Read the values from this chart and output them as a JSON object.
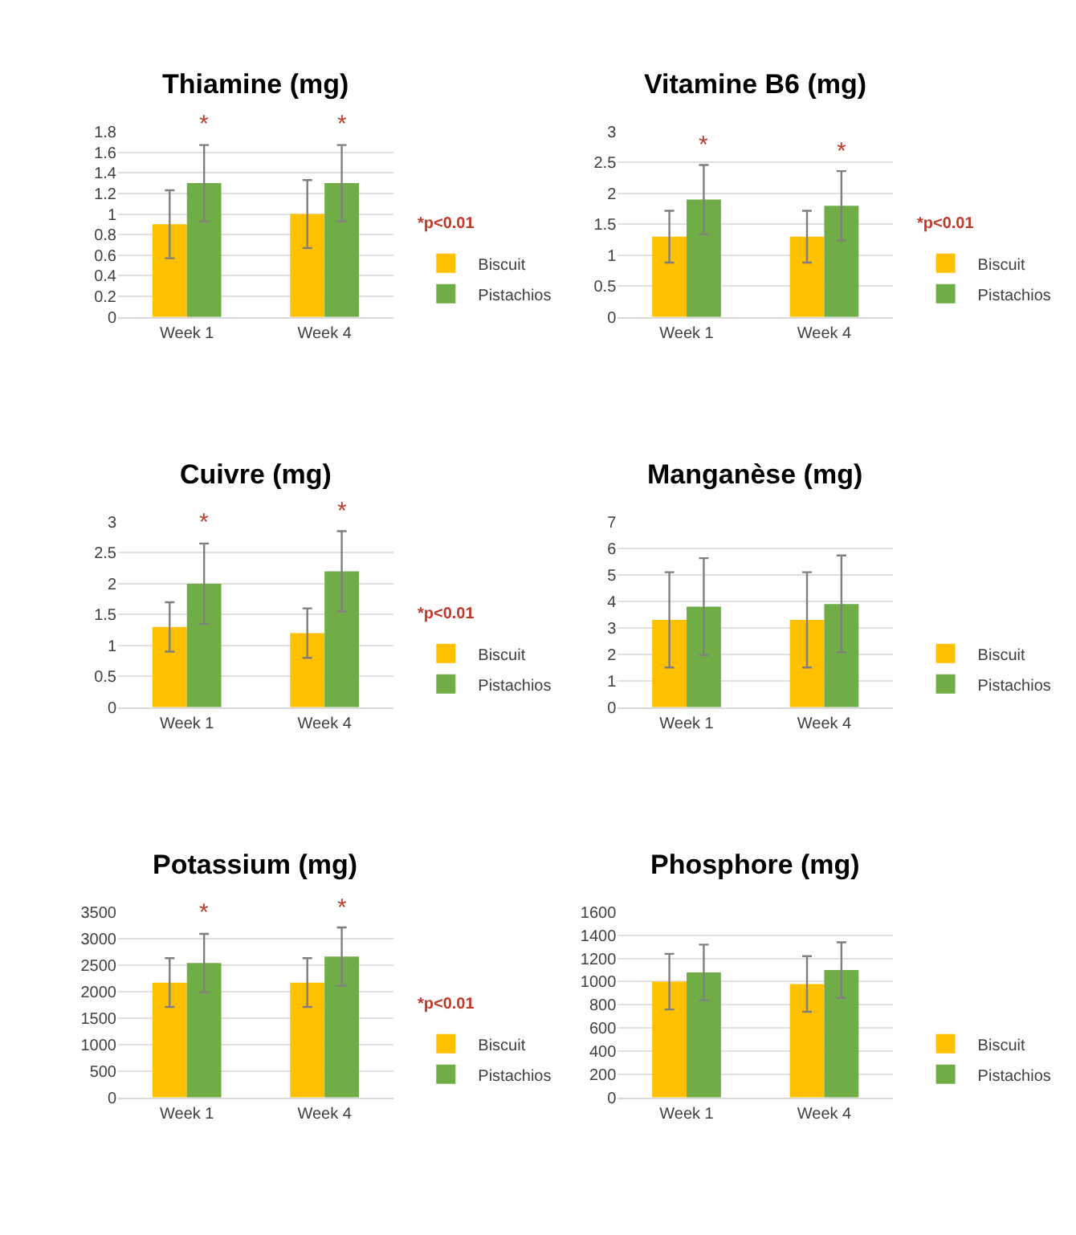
{
  "chart_data": [
    {
      "type": "bar",
      "title": "Thiamine (mg)",
      "categories": [
        "Week 1",
        "Week 4"
      ],
      "ylim": [
        0,
        1.8
      ],
      "yticks": [
        0,
        0.2,
        0.4,
        0.6,
        0.8,
        1,
        1.2,
        1.4,
        1.6,
        1.8
      ],
      "grid": "y",
      "legend": "bottom right",
      "series": [
        {
          "name": "Biscuit",
          "color": "#ffc000",
          "values": [
            0.9,
            1.0
          ],
          "errors": [
            0.33,
            0.33
          ]
        },
        {
          "name": "Pistachios",
          "color": "#70ad47",
          "values": [
            1.3,
            1.3
          ],
          "errors": [
            0.37,
            0.37
          ]
        }
      ],
      "annotations": [
        "*",
        "*",
        "*p<0.01"
      ]
    },
    {
      "type": "bar",
      "title": "Vitamine B6 (mg)",
      "categories": [
        "Week 1",
        "Week 4"
      ],
      "ylim": [
        0,
        3
      ],
      "yticks": [
        0,
        0.5,
        1,
        1.5,
        2,
        2.5,
        3
      ],
      "grid": "y",
      "legend": "bottom right",
      "series": [
        {
          "name": "Biscuit",
          "color": "#ffc000",
          "values": [
            1.3,
            1.3
          ],
          "errors": [
            0.42,
            0.42
          ]
        },
        {
          "name": "Pistachios",
          "color": "#70ad47",
          "values": [
            1.9,
            1.8
          ],
          "errors": [
            0.56,
            0.56
          ]
        }
      ],
      "annotations": [
        "*",
        "*",
        "*p<0.01"
      ]
    },
    {
      "type": "bar",
      "title": "Cuivre (mg)",
      "categories": [
        "Week 1",
        "Week 4"
      ],
      "ylim": [
        0,
        3
      ],
      "yticks": [
        0,
        0.5,
        1,
        1.5,
        2,
        2.5,
        3
      ],
      "grid": "y",
      "legend": "bottom right",
      "series": [
        {
          "name": "Biscuit",
          "color": "#ffc000",
          "values": [
            1.3,
            1.2
          ],
          "errors": [
            0.4,
            0.4
          ]
        },
        {
          "name": "Pistachios",
          "color": "#70ad47",
          "values": [
            2.0,
            2.2
          ],
          "errors": [
            0.65,
            0.65
          ]
        }
      ],
      "annotations": [
        "*",
        "*",
        "*p<0.01"
      ]
    },
    {
      "type": "bar",
      "title": "Manganèse (mg)",
      "categories": [
        "Week 1",
        "Week 4"
      ],
      "ylim": [
        0,
        7
      ],
      "yticks": [
        0,
        1,
        2,
        3,
        4,
        5,
        6,
        7
      ],
      "grid": "y",
      "legend": "bottom right",
      "series": [
        {
          "name": "Biscuit",
          "color": "#ffc000",
          "values": [
            3.3,
            3.3
          ],
          "errors": [
            1.8,
            1.8
          ]
        },
        {
          "name": "Pistachios",
          "color": "#70ad47",
          "values": [
            3.8,
            3.9
          ],
          "errors": [
            1.83,
            1.83
          ]
        }
      ]
    },
    {
      "type": "bar",
      "title": "Potassium (mg)",
      "categories": [
        "Week 1",
        "Week 4"
      ],
      "ylim": [
        0,
        3500
      ],
      "yticks": [
        0,
        500,
        1000,
        1500,
        2000,
        2500,
        3000,
        3500
      ],
      "grid": "y",
      "legend": "bottom right",
      "series": [
        {
          "name": "Biscuit",
          "color": "#ffc000",
          "values": [
            2170,
            2170
          ],
          "errors": [
            460,
            460
          ]
        },
        {
          "name": "Pistachios",
          "color": "#70ad47",
          "values": [
            2540,
            2660
          ],
          "errors": [
            550,
            550
          ]
        }
      ],
      "annotations": [
        "*",
        "*",
        "*p<0.01"
      ]
    },
    {
      "type": "bar",
      "title": "Phosphore (mg)",
      "categories": [
        "Week 1",
        "Week 4"
      ],
      "ylim": [
        0,
        1600
      ],
      "yticks": [
        0,
        200,
        400,
        600,
        800,
        1000,
        1200,
        1400,
        1600
      ],
      "grid": "y",
      "legend": "bottom right",
      "series": [
        {
          "name": "Biscuit",
          "color": "#ffc000",
          "values": [
            1000,
            980
          ],
          "errors": [
            240,
            240
          ]
        },
        {
          "name": "Pistachios",
          "color": "#70ad47",
          "values": [
            1080,
            1100
          ],
          "errors": [
            240,
            240
          ]
        }
      ]
    }
  ]
}
